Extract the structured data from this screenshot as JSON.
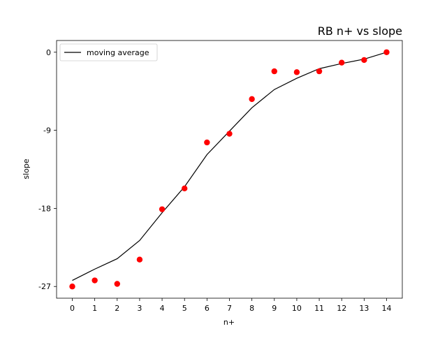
{
  "chart_data": {
    "type": "scatter",
    "title": "RB n+ vs slope",
    "xlabel": "n+",
    "ylabel": "slope",
    "x": [
      0,
      1,
      2,
      3,
      4,
      5,
      6,
      7,
      8,
      9,
      10,
      11,
      12,
      13,
      14
    ],
    "series": [
      {
        "kind": "scatter",
        "color": "#ff0000",
        "values": [
          -27.0,
          -26.3,
          -26.7,
          -23.9,
          -18.1,
          -15.7,
          -10.4,
          -9.4,
          -5.4,
          -2.2,
          -2.3,
          -2.2,
          -1.2,
          -0.9,
          0.0
        ]
      },
      {
        "name": "moving average",
        "kind": "line",
        "color": "#000000",
        "values": [
          -26.3,
          -25.0,
          -23.8,
          -21.7,
          -18.5,
          -15.5,
          -11.8,
          -9.1,
          -6.4,
          -4.3,
          -3.0,
          -1.9,
          -1.3,
          -0.8,
          0.0
        ]
      }
    ],
    "xticks": [
      0,
      1,
      2,
      3,
      4,
      5,
      6,
      7,
      8,
      9,
      10,
      11,
      12,
      13,
      14
    ],
    "xtick_labels": [
      "0",
      "1",
      "2",
      "3",
      "4",
      "5",
      "6",
      "7",
      "8",
      "9",
      "10",
      "11",
      "12",
      "13",
      "14"
    ],
    "yticks": [
      -27,
      -18,
      -9,
      0
    ],
    "ytick_labels": [
      "-27",
      "-18",
      "-9",
      "0"
    ],
    "xlim": [
      -0.7,
      14.7
    ],
    "ylim": [
      -28.35,
      1.35
    ],
    "grid": false,
    "legend_position": "top-left"
  }
}
